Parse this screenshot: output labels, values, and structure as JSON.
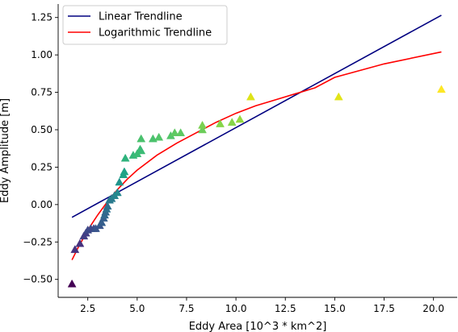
{
  "chart_data": {
    "type": "scatter",
    "xlabel": "Eddy Area [10^3 * km^2]",
    "ylabel": "Eddy Amplitude [m]",
    "xlim": [
      1.0,
      21.2
    ],
    "ylim": [
      -0.62,
      1.34
    ],
    "x_ticks": [
      "2.5",
      "5.0",
      "7.5",
      "10.0",
      "12.5",
      "15.0",
      "17.5",
      "20.0"
    ],
    "y_ticks": [
      "−0.50",
      "−0.25",
      "0.00",
      "0.25",
      "0.50",
      "0.75",
      "1.00",
      "1.25"
    ],
    "x_tick_values": [
      2.5,
      5.0,
      7.5,
      10.0,
      12.5,
      15.0,
      17.5,
      20.0
    ],
    "y_tick_values": [
      -0.5,
      -0.25,
      0.0,
      0.25,
      0.5,
      0.75,
      1.0,
      1.25
    ],
    "legend_position": "top-left",
    "grid": false,
    "series": [
      {
        "name": "Linear Trendline",
        "kind": "line",
        "color": "#000080",
        "points": [
          [
            1.7,
            -0.085
          ],
          [
            20.4,
            1.265
          ]
        ]
      },
      {
        "name": "Logarithmic Trendline",
        "kind": "line",
        "color": "#ff0000",
        "points": [
          [
            1.7,
            -0.37
          ],
          [
            2.0,
            -0.29
          ],
          [
            2.5,
            -0.17
          ],
          [
            3.0,
            -0.07
          ],
          [
            3.5,
            0.02
          ],
          [
            4.0,
            0.1
          ],
          [
            4.5,
            0.17
          ],
          [
            5.0,
            0.23
          ],
          [
            6.0,
            0.33
          ],
          [
            7.0,
            0.41
          ],
          [
            8.0,
            0.48
          ],
          [
            9.0,
            0.55
          ],
          [
            10.0,
            0.61
          ],
          [
            11.0,
            0.66
          ],
          [
            12.0,
            0.7
          ],
          [
            13.0,
            0.74
          ],
          [
            14.0,
            0.78
          ],
          [
            15.0,
            0.85
          ],
          [
            17.5,
            0.94
          ],
          [
            20.4,
            1.02
          ]
        ]
      }
    ],
    "scatter_points": [
      {
        "x": 1.7,
        "y": -0.53,
        "c": "#440154"
      },
      {
        "x": 1.85,
        "y": -0.3,
        "c": "#46327e"
      },
      {
        "x": 2.1,
        "y": -0.26,
        "c": "#46327e"
      },
      {
        "x": 2.3,
        "y": -0.21,
        "c": "#433e85"
      },
      {
        "x": 2.4,
        "y": -0.19,
        "c": "#433e85"
      },
      {
        "x": 2.5,
        "y": -0.17,
        "c": "#3e4989"
      },
      {
        "x": 2.65,
        "y": -0.16,
        "c": "#3e4989"
      },
      {
        "x": 2.8,
        "y": -0.16,
        "c": "#3e4989"
      },
      {
        "x": 2.9,
        "y": -0.16,
        "c": "#39558c"
      },
      {
        "x": 3.1,
        "y": -0.14,
        "c": "#39558c"
      },
      {
        "x": 3.2,
        "y": -0.12,
        "c": "#355f8d"
      },
      {
        "x": 3.3,
        "y": -0.09,
        "c": "#355f8d"
      },
      {
        "x": 3.35,
        "y": -0.07,
        "c": "#31688e"
      },
      {
        "x": 3.4,
        "y": -0.05,
        "c": "#31688e"
      },
      {
        "x": 3.45,
        "y": -0.03,
        "c": "#2d708e"
      },
      {
        "x": 3.5,
        "y": -0.01,
        "c": "#2d708e"
      },
      {
        "x": 3.6,
        "y": 0.03,
        "c": "#297a8e"
      },
      {
        "x": 3.7,
        "y": 0.04,
        "c": "#297a8e"
      },
      {
        "x": 3.85,
        "y": 0.06,
        "c": "#25838e"
      },
      {
        "x": 4.0,
        "y": 0.08,
        "c": "#23898e"
      },
      {
        "x": 4.1,
        "y": 0.15,
        "c": "#1f948c"
      },
      {
        "x": 4.3,
        "y": 0.2,
        "c": "#20a386"
      },
      {
        "x": 4.35,
        "y": 0.22,
        "c": "#20a386"
      },
      {
        "x": 4.4,
        "y": 0.31,
        "c": "#2eb37c"
      },
      {
        "x": 4.8,
        "y": 0.33,
        "c": "#35b779"
      },
      {
        "x": 5.0,
        "y": 0.34,
        "c": "#3bbb75"
      },
      {
        "x": 5.15,
        "y": 0.37,
        "c": "#3bbb75"
      },
      {
        "x": 5.2,
        "y": 0.36,
        "c": "#3bbb75"
      },
      {
        "x": 5.2,
        "y": 0.44,
        "c": "#4ac16d"
      },
      {
        "x": 5.8,
        "y": 0.44,
        "c": "#4ac16d"
      },
      {
        "x": 6.1,
        "y": 0.45,
        "c": "#52c569"
      },
      {
        "x": 6.7,
        "y": 0.46,
        "c": "#52c569"
      },
      {
        "x": 6.9,
        "y": 0.48,
        "c": "#5ec962"
      },
      {
        "x": 7.2,
        "y": 0.48,
        "c": "#5ec962"
      },
      {
        "x": 8.3,
        "y": 0.5,
        "c": "#6ccd5a"
      },
      {
        "x": 8.3,
        "y": 0.53,
        "c": "#7ad151"
      },
      {
        "x": 9.2,
        "y": 0.54,
        "c": "#86d549"
      },
      {
        "x": 9.8,
        "y": 0.55,
        "c": "#86d549"
      },
      {
        "x": 10.2,
        "y": 0.57,
        "c": "#95d840"
      },
      {
        "x": 10.75,
        "y": 0.72,
        "c": "#dde318"
      },
      {
        "x": 15.2,
        "y": 0.72,
        "c": "#e2e418"
      },
      {
        "x": 20.4,
        "y": 0.77,
        "c": "#fde725"
      }
    ]
  }
}
